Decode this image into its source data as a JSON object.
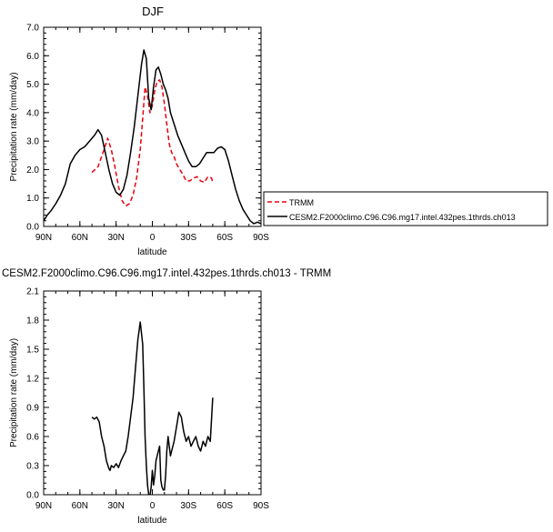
{
  "chart_data": [
    {
      "type": "line",
      "title": "DJF",
      "xlabel": "latitude",
      "ylabel": "Precipitation rate (mm/day)",
      "xlim": [
        90,
        -90
      ],
      "ylim": [
        0,
        7
      ],
      "xticks": [
        90,
        60,
        30,
        0,
        -30,
        -60,
        -90
      ],
      "xtick_labels": [
        "90N",
        "60N",
        "30N",
        "0",
        "30S",
        "60S",
        "90S"
      ],
      "yticks": [
        0,
        1,
        2,
        3,
        4,
        5,
        6,
        7
      ],
      "ytick_labels": [
        "0.0",
        "1.0",
        "2.0",
        "3.0",
        "4.0",
        "5.0",
        "6.0",
        "7.0"
      ],
      "legend": "right-outside",
      "series": [
        {
          "name": "TRMM",
          "color": "#e8000b",
          "dash": "dashed",
          "x": [
            50,
            45,
            40,
            37,
            34,
            31,
            28,
            25,
            22,
            19,
            16,
            13,
            10,
            8,
            6,
            4,
            2,
            0,
            -2,
            -4,
            -6,
            -8,
            -10,
            -12,
            -14,
            -16,
            -18,
            -20,
            -22,
            -25,
            -28,
            -31,
            -34,
            -37,
            -40,
            -43,
            -46,
            -49,
            -50
          ],
          "y": [
            1.9,
            2.1,
            2.7,
            3.1,
            2.7,
            2.1,
            1.4,
            0.9,
            0.72,
            0.8,
            1.1,
            1.7,
            2.7,
            3.8,
            4.9,
            4.6,
            4.0,
            4.25,
            4.8,
            5.1,
            5.15,
            4.9,
            4.3,
            3.6,
            2.9,
            2.6,
            2.45,
            2.2,
            2.05,
            1.85,
            1.6,
            1.6,
            1.7,
            1.75,
            1.6,
            1.55,
            1.75,
            1.7,
            1.55
          ]
        },
        {
          "name": "CESM2.F2000climo.C96.C96.mg17.intel.432pes.1thrds.ch013",
          "color": "#000000",
          "dash": "solid",
          "x": [
            90,
            87,
            84,
            80,
            76,
            72,
            68,
            64,
            60,
            56,
            52,
            48,
            45,
            42,
            39,
            36,
            33,
            30,
            27,
            24,
            21,
            18,
            15,
            12,
            9,
            7,
            5,
            3,
            1,
            -1,
            -3,
            -5,
            -7,
            -9,
            -11,
            -13,
            -15,
            -18,
            -21,
            -24,
            -27,
            -30,
            -33,
            -36,
            -39,
            -42,
            -45,
            -48,
            -51,
            -54,
            -57,
            -60,
            -63,
            -66,
            -69,
            -72,
            -75,
            -78,
            -81,
            -84,
            -87,
            -90
          ],
          "y": [
            0.2,
            0.4,
            0.55,
            0.8,
            1.1,
            1.5,
            2.2,
            2.5,
            2.7,
            2.8,
            3.0,
            3.2,
            3.4,
            3.2,
            2.6,
            2.0,
            1.5,
            1.2,
            1.1,
            1.3,
            1.8,
            2.6,
            3.5,
            4.6,
            5.7,
            6.2,
            5.9,
            4.5,
            4.1,
            4.9,
            5.5,
            5.6,
            5.35,
            5.0,
            4.8,
            4.5,
            4.0,
            3.6,
            3.2,
            2.9,
            2.6,
            2.3,
            2.1,
            2.1,
            2.2,
            2.4,
            2.6,
            2.6,
            2.6,
            2.75,
            2.8,
            2.7,
            2.3,
            1.8,
            1.3,
            0.9,
            0.6,
            0.4,
            0.2,
            0.1,
            0.15,
            0.1
          ]
        }
      ]
    },
    {
      "type": "line",
      "title": "CESM2.F2000climo.C96.C96.mg17.intel.432pes.1thrds.ch013 - TRMM",
      "xlabel": "latitude",
      "ylabel": "Precipitation rate (mm/day)",
      "xlim": [
        90,
        -90
      ],
      "ylim": [
        0,
        2.1
      ],
      "xticks": [
        90,
        60,
        30,
        0,
        -30,
        -60,
        -90
      ],
      "xtick_labels": [
        "90N",
        "60N",
        "30N",
        "0",
        "30S",
        "60S",
        "90S"
      ],
      "yticks": [
        0,
        0.3,
        0.6,
        0.9,
        1.2,
        1.5,
        1.8,
        2.1
      ],
      "ytick_labels": [
        "0.0",
        "0.3",
        "0.6",
        "0.9",
        "1.2",
        "1.5",
        "1.8",
        "2.1"
      ],
      "series": [
        {
          "color": "#000000",
          "dash": "solid",
          "x": [
            50,
            48,
            46,
            44,
            42,
            40,
            38,
            36,
            35,
            34,
            32,
            30,
            28,
            26,
            24,
            22,
            20,
            18,
            16,
            14,
            12,
            10,
            8,
            7,
            6,
            5,
            4,
            3,
            2,
            1,
            0,
            -1,
            -2,
            -3,
            -4,
            -5,
            -6,
            -7,
            -8,
            -9,
            -10,
            -11,
            -12,
            -13,
            -14,
            -15,
            -16,
            -18,
            -20,
            -22,
            -24,
            -26,
            -28,
            -30,
            -32,
            -34,
            -36,
            -38,
            -40,
            -42,
            -44,
            -46,
            -48,
            -50
          ],
          "y": [
            0.8,
            0.78,
            0.8,
            0.75,
            0.6,
            0.5,
            0.35,
            0.27,
            0.25,
            0.3,
            0.28,
            0.32,
            0.28,
            0.35,
            0.4,
            0.45,
            0.6,
            0.8,
            1.0,
            1.3,
            1.6,
            1.78,
            1.55,
            1.1,
            0.6,
            0.3,
            0.1,
            0.0,
            -0.02,
            0.08,
            0.25,
            0.1,
            0.2,
            0.35,
            0.4,
            0.45,
            0.5,
            0.15,
            0.08,
            0.05,
            0.05,
            0.2,
            0.45,
            0.6,
            0.5,
            0.4,
            0.45,
            0.55,
            0.7,
            0.85,
            0.8,
            0.65,
            0.55,
            0.6,
            0.5,
            0.55,
            0.6,
            0.5,
            0.45,
            0.55,
            0.5,
            0.6,
            0.55,
            1.0
          ]
        }
      ]
    }
  ]
}
